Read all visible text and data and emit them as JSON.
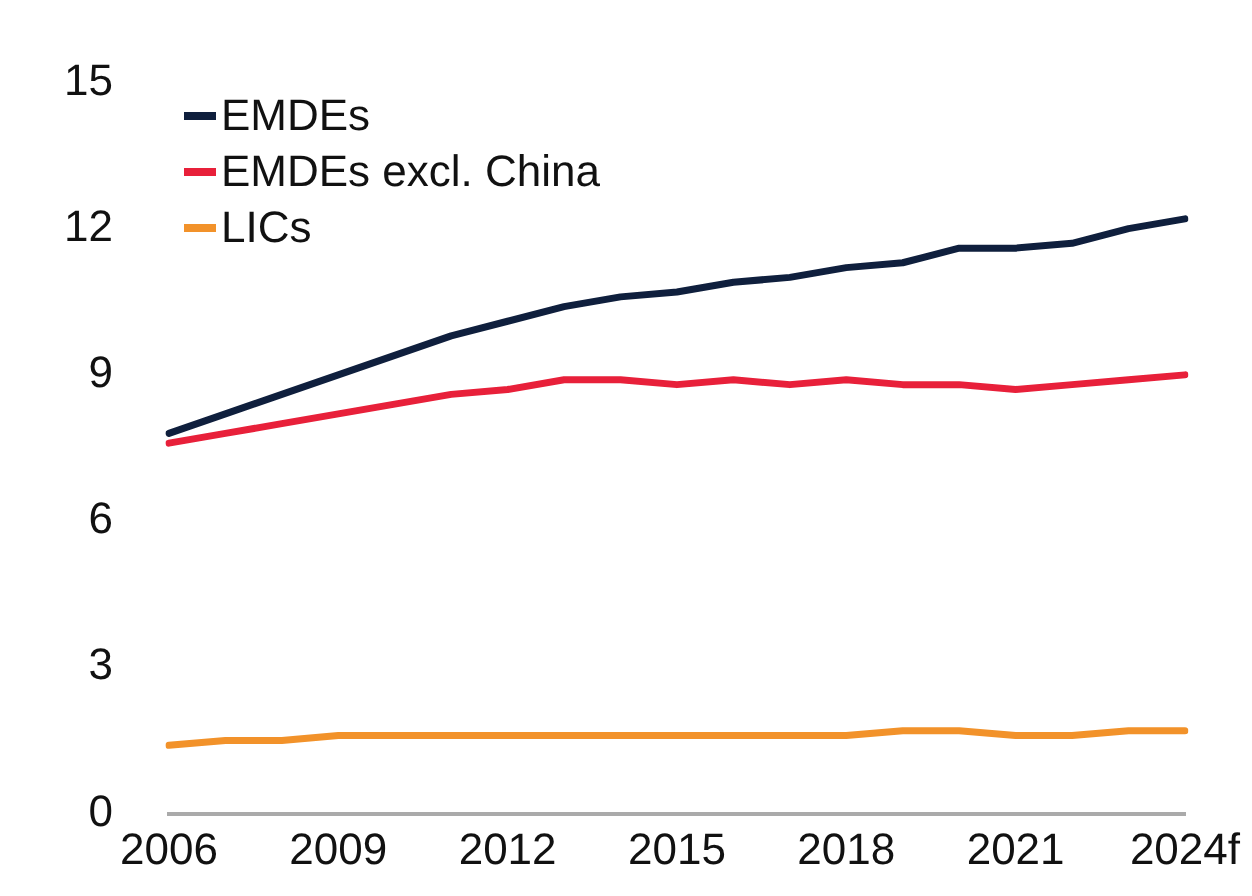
{
  "chart_data": {
    "type": "line",
    "categories": [
      "2006",
      null,
      null,
      "2009",
      null,
      null,
      "2012",
      null,
      null,
      "2015",
      null,
      null,
      "2018",
      null,
      null,
      "2021",
      null,
      null,
      "2024f"
    ],
    "series": [
      {
        "name": "EMDEs",
        "color": "#0f1f3d",
        "values": [
          7.8,
          8.2,
          8.6,
          9.0,
          9.4,
          9.8,
          10.1,
          10.4,
          10.6,
          10.7,
          10.9,
          11.0,
          11.2,
          11.3,
          11.6,
          11.6,
          11.7,
          12.0,
          12.2
        ]
      },
      {
        "name": "EMDEs excl. China",
        "color": "#e8203a",
        "values": [
          7.6,
          7.8,
          8.0,
          8.2,
          8.4,
          8.6,
          8.7,
          8.9,
          8.9,
          8.8,
          8.9,
          8.8,
          8.9,
          8.8,
          8.8,
          8.7,
          8.8,
          8.9,
          9.0
        ]
      },
      {
        "name": "LICs",
        "color": "#f2922a",
        "values": [
          1.4,
          1.5,
          1.5,
          1.6,
          1.6,
          1.6,
          1.6,
          1.6,
          1.6,
          1.6,
          1.6,
          1.6,
          1.6,
          1.7,
          1.7,
          1.6,
          1.6,
          1.7,
          1.7
        ]
      }
    ],
    "ylim": [
      0,
      15
    ],
    "yticks": [
      0,
      3,
      6,
      9,
      12,
      15
    ],
    "grid": false,
    "legend": "top left",
    "marker": "none",
    "line_style": "solid"
  }
}
